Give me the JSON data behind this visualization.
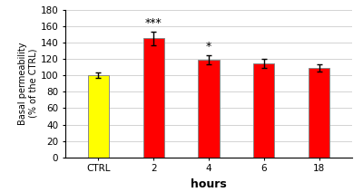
{
  "categories": [
    "CTRL",
    "2",
    "4",
    "6",
    "18"
  ],
  "values": [
    100,
    145,
    119,
    115,
    109
  ],
  "errors": [
    3.5,
    8.0,
    5.5,
    5.5,
    4.0
  ],
  "bar_colors": [
    "#ffff00",
    "#ff0000",
    "#ff0000",
    "#ff0000",
    "#ff0000"
  ],
  "bar_edge_colors": [
    "#888888",
    "#888888",
    "#888888",
    "#888888",
    "#888888"
  ],
  "significance": [
    "",
    "***",
    "*",
    "",
    ""
  ],
  "title": "",
  "xlabel": "hours",
  "ylabel": "Basal permeability\n(% of the CTRL)",
  "ylim": [
    0,
    180
  ],
  "yticks": [
    0,
    20,
    40,
    60,
    80,
    100,
    120,
    140,
    160,
    180
  ],
  "bar_width": 0.38,
  "figsize": [
    4.0,
    2.12
  ],
  "dpi": 100,
  "xlabel_fontsize": 9,
  "ylabel_fontsize": 7,
  "tick_fontsize": 7.5,
  "sig_fontsize": 9,
  "background_color": "#ffffff",
  "grid_color": "#cccccc"
}
